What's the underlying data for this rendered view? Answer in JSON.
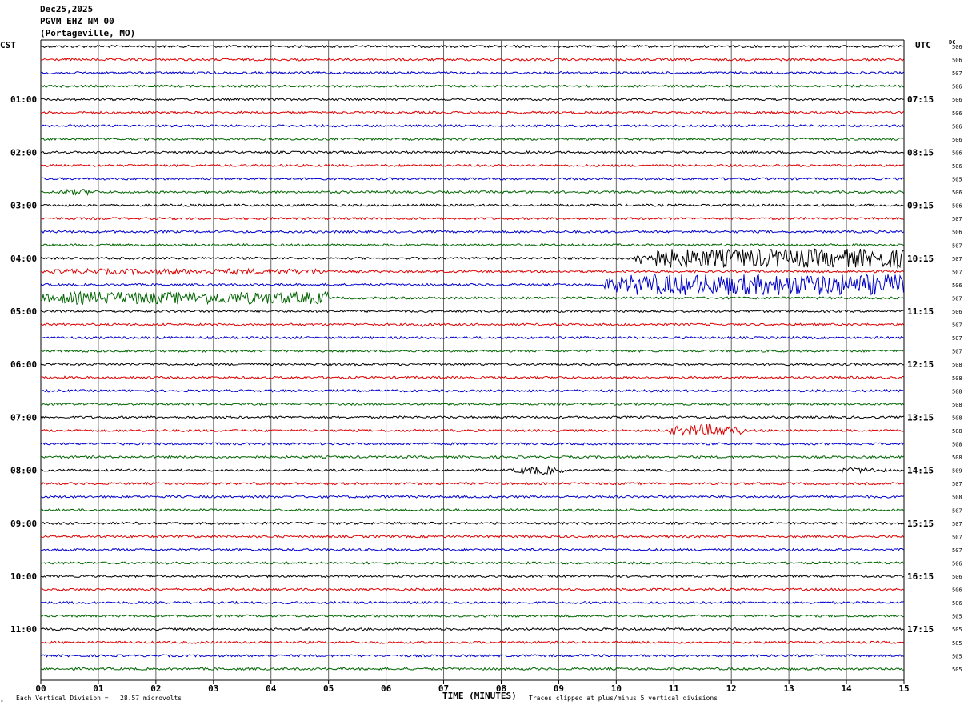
{
  "header": {
    "date": "Dec25,2025",
    "station": "PGVM EHZ NM 00",
    "location": "(Portageville, MO)"
  },
  "labels": {
    "left_tz": "CST",
    "right_tz": "UTC",
    "dc_header": "DC",
    "xlabel": "TIME (MINUTES)",
    "scale_note": "Each Vertical Division =   28.57 microvolts",
    "clip_note": "Traces clipped at plus/minus 5 vertical divisions",
    "corner_mark": "↕"
  },
  "chart_data": {
    "type": "line",
    "title": "PGVM EHZ NM 00 (Portageville, MO)",
    "xlabel": "TIME (MINUTES)",
    "xlim": [
      0,
      15
    ],
    "x_ticks": [
      "00",
      "01",
      "02",
      "03",
      "04",
      "05",
      "06",
      "07",
      "08",
      "09",
      "10",
      "11",
      "12",
      "13",
      "14",
      "15"
    ],
    "trace_count": 48,
    "minutes_per_trace": 15,
    "trace_colors": [
      "#000000",
      "#dd0000",
      "#0000cc",
      "#006600"
    ],
    "cst_hour_labels": [
      {
        "trace": 4,
        "label": "01:00"
      },
      {
        "trace": 8,
        "label": "02:00"
      },
      {
        "trace": 12,
        "label": "03:00"
      },
      {
        "trace": 16,
        "label": "04:00"
      },
      {
        "trace": 20,
        "label": "05:00"
      },
      {
        "trace": 24,
        "label": "06:00"
      },
      {
        "trace": 28,
        "label": "07:00"
      },
      {
        "trace": 32,
        "label": "08:00"
      },
      {
        "trace": 36,
        "label": "09:00"
      },
      {
        "trace": 40,
        "label": "10:00"
      },
      {
        "trace": 44,
        "label": "11:00"
      }
    ],
    "utc_hour_labels": [
      {
        "trace": 4,
        "label": "07:15"
      },
      {
        "trace": 8,
        "label": "08:15"
      },
      {
        "trace": 12,
        "label": "09:15"
      },
      {
        "trace": 16,
        "label": "10:15"
      },
      {
        "trace": 20,
        "label": "11:15"
      },
      {
        "trace": 24,
        "label": "12:15"
      },
      {
        "trace": 28,
        "label": "13:15"
      },
      {
        "trace": 32,
        "label": "14:15"
      },
      {
        "trace": 36,
        "label": "15:15"
      },
      {
        "trace": 40,
        "label": "16:15"
      },
      {
        "trace": 44,
        "label": "17:15"
      }
    ],
    "dc_offsets": [
      "506",
      "506",
      "507",
      "506",
      "506",
      "506",
      "506",
      "506",
      "506",
      "506",
      "505",
      "506",
      "506",
      "507",
      "506",
      "507",
      "507",
      "507",
      "506",
      "507",
      "506",
      "507",
      "507",
      "507",
      "508",
      "508",
      "508",
      "508",
      "508",
      "508",
      "508",
      "508",
      "509",
      "507",
      "508",
      "507",
      "507",
      "507",
      "507",
      "506",
      "506",
      "506",
      "506",
      "505",
      "505",
      "505",
      "505",
      "505"
    ],
    "events": [
      {
        "trace": 11,
        "start_min": 0.3,
        "end_min": 1.0,
        "amp_div": 1.5
      },
      {
        "trace": 16,
        "start_min": 10.3,
        "end_min": 15.0,
        "amp_div": 4.5
      },
      {
        "trace": 17,
        "start_min": 0.0,
        "end_min": 5.0,
        "amp_div": 1.3
      },
      {
        "trace": 18,
        "start_min": 9.8,
        "end_min": 15.0,
        "amp_div": 5.0
      },
      {
        "trace": 19,
        "start_min": 0.0,
        "end_min": 5.0,
        "amp_div": 3.0
      },
      {
        "trace": 21,
        "start_min": 6.55,
        "end_min": 6.7,
        "amp_div": 1.5
      },
      {
        "trace": 29,
        "start_min": 10.9,
        "end_min": 12.2,
        "amp_div": 3.0
      },
      {
        "trace": 32,
        "start_min": 8.2,
        "end_min": 9.1,
        "amp_div": 2.0
      },
      {
        "trace": 32,
        "start_min": 13.8,
        "end_min": 14.7,
        "amp_div": 1.3
      }
    ]
  }
}
